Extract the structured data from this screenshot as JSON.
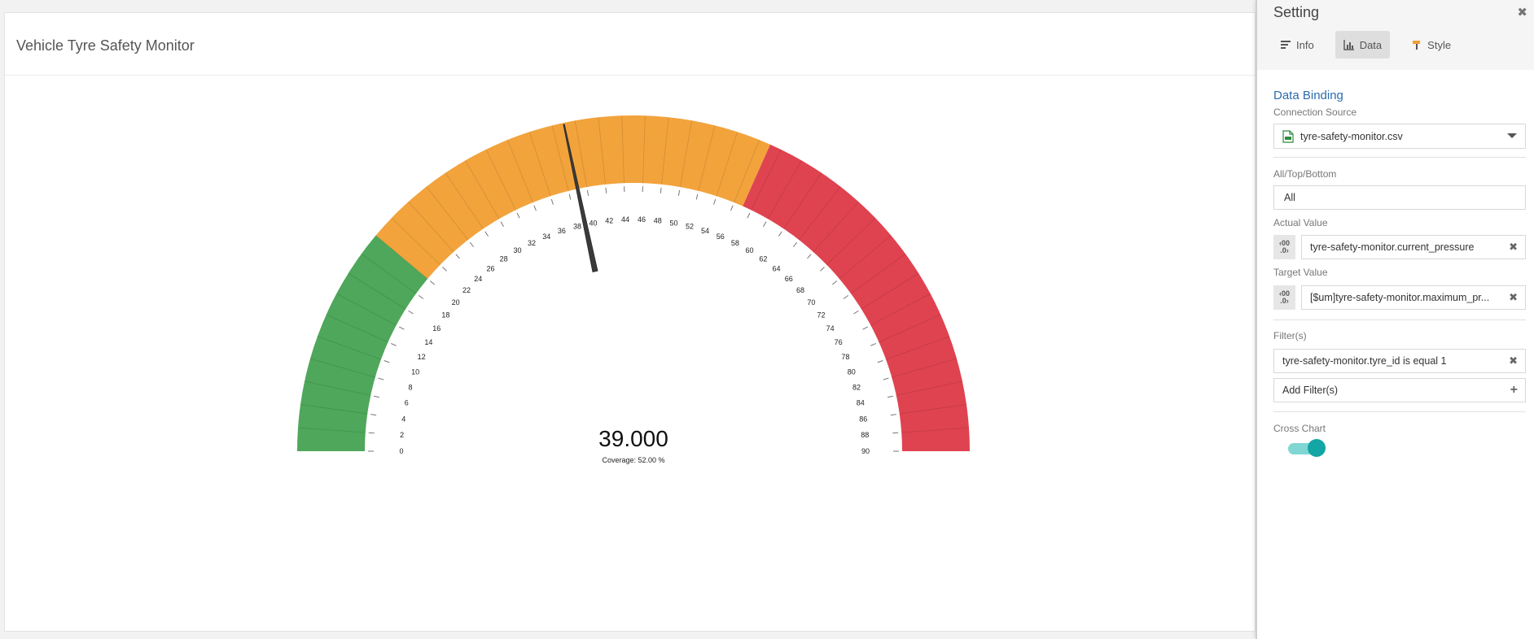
{
  "chart": {
    "title": "Vehicle Tyre Safety Monitor",
    "value_display": "39.000",
    "coverage_text": "Coverage: 52.00 %"
  },
  "chart_data": {
    "type": "gauge",
    "title": "Vehicle Tyre Safety Monitor",
    "min": 0,
    "max": 90,
    "tick_step": 2,
    "value": 39,
    "coverage_percent": 52.0,
    "bands": [
      {
        "from": 0,
        "to": 20,
        "color": "#4ea75a"
      },
      {
        "from": 20,
        "to": 57,
        "color": "#f2a33c"
      },
      {
        "from": 57,
        "to": 90,
        "color": "#df4350"
      }
    ],
    "tick_labels": [
      "0",
      "2",
      "4",
      "6",
      "8",
      "10",
      "12",
      "14",
      "16",
      "18",
      "20",
      "22",
      "24",
      "26",
      "28",
      "30",
      "32",
      "34",
      "36",
      "38",
      "40",
      "42",
      "44",
      "46",
      "48",
      "50",
      "52",
      "54",
      "56",
      "58",
      "60",
      "62",
      "64",
      "66",
      "68",
      "70",
      "72",
      "74",
      "76",
      "78",
      "80",
      "82",
      "84",
      "86",
      "88",
      "90"
    ]
  },
  "settings": {
    "title": "Setting",
    "tabs": [
      {
        "label": "Info",
        "icon": "info-bars-icon"
      },
      {
        "label": "Data",
        "icon": "bar-chart-icon"
      },
      {
        "label": "Style",
        "icon": "paint-roller-icon"
      }
    ],
    "section_title": "Data Binding",
    "connection_label": "Connection Source",
    "connection_value": "tyre-safety-monitor.csv",
    "all_top_bottom_label": "All/Top/Bottom",
    "all_top_bottom_value": "All",
    "actual_label": "Actual Value",
    "actual_value": "tyre-safety-monitor.current_pressure",
    "target_label": "Target Value",
    "target_value": "[$um]tyre-safety-monitor.maximum_pr...",
    "fx_top": "‹00",
    "fx_bottom": ".0›",
    "filters_label": "Filter(s)",
    "filter_value": "tyre-safety-monitor.tyre_id is equal 1",
    "add_filter_label": "Add Filter(s)",
    "cross_chart_label": "Cross Chart",
    "cross_chart_on": true,
    "accent_color": "#2b6cb0",
    "toggle_color": "#14a5a5"
  }
}
